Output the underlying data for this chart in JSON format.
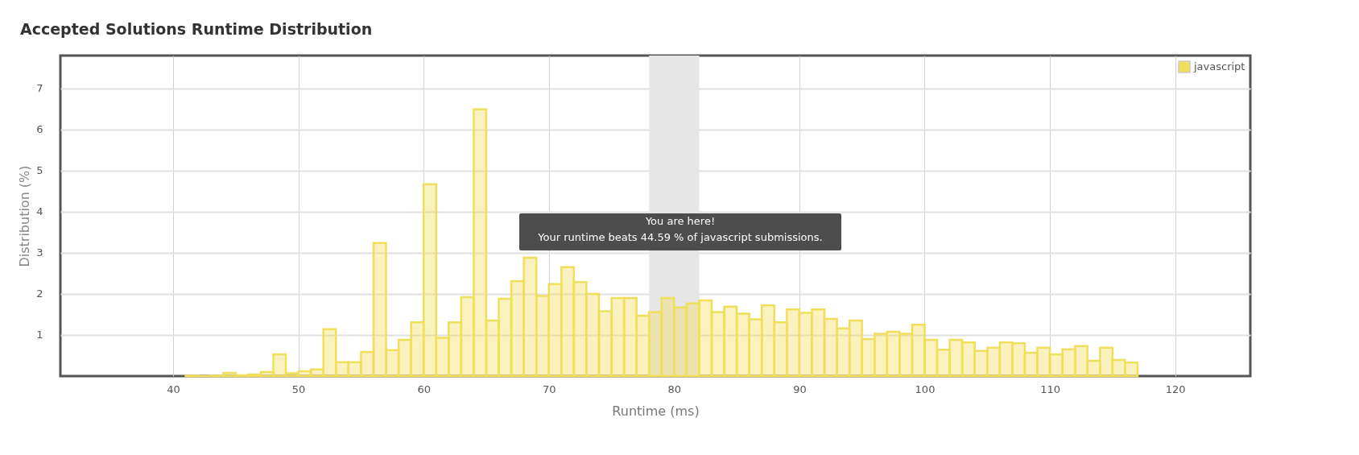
{
  "chart_data": {
    "type": "histogram",
    "title": "Accepted Solutions Runtime Distribution",
    "xlabel": "Runtime (ms)",
    "ylabel": "Distribution (%)",
    "bins": [
      41,
      42,
      43,
      44,
      45,
      46,
      47,
      48,
      49,
      50,
      51,
      52,
      53,
      54,
      55,
      56,
      57,
      58,
      59,
      60,
      61,
      62,
      63,
      64,
      65,
      66,
      67,
      68,
      69,
      70,
      71,
      72,
      73,
      74,
      75,
      76,
      77,
      78,
      79,
      80,
      81,
      82,
      83,
      84,
      85,
      86,
      87,
      88,
      89,
      90,
      91,
      92,
      93,
      94,
      95,
      96,
      97,
      98,
      99,
      100,
      101,
      102,
      103,
      104,
      105,
      106,
      107,
      108,
      109,
      110,
      111,
      112,
      113,
      114,
      115,
      116,
      117
    ],
    "series": [
      {
        "name": "javascript",
        "color": "#f0df5c",
        "values": [
          0.01,
          0,
          0.01,
          0.08,
          0.02,
          0.04,
          0.1,
          0.53,
          0.07,
          0.12,
          0.16,
          1.14,
          0.34,
          0.34,
          0.59,
          3.24,
          0.63,
          0.88,
          1.31,
          4.67,
          0.93,
          1.31,
          1.92,
          6.49,
          1.35,
          1.88,
          2.31,
          2.88,
          1.95,
          2.24,
          2.65,
          2.29,
          2.0,
          1.58,
          1.9,
          1.9,
          1.47,
          1.56,
          1.9,
          1.67,
          1.77,
          1.84,
          1.56,
          1.69,
          1.52,
          1.38,
          1.72,
          1.31,
          1.62,
          1.54,
          1.62,
          1.39,
          1.16,
          1.35,
          0.9,
          1.03,
          1.08,
          1.03,
          1.25,
          0.88,
          0.64,
          0.88,
          0.82,
          0.61,
          0.69,
          0.82,
          0.8,
          0.57,
          0.69,
          0.53,
          0.65,
          0.73,
          0.37,
          0.69,
          0.39,
          0.33
        ]
      }
    ],
    "xlim": [
      31,
      126
    ],
    "xticks": [
      40,
      50,
      60,
      70,
      80,
      90,
      100,
      110,
      120
    ],
    "ylim": [
      0,
      7.8
    ],
    "yticks": [
      1,
      2,
      3,
      4,
      5,
      6,
      7
    ],
    "grid": true,
    "legend": "top right",
    "bands": [
      {
        "axis": "x",
        "from": 78,
        "to": 82,
        "color": "#e6e6e6"
      }
    ],
    "annotations": [
      "You are here!",
      "Your runtime beats 44.59 % of javascript submissions."
    ]
  }
}
